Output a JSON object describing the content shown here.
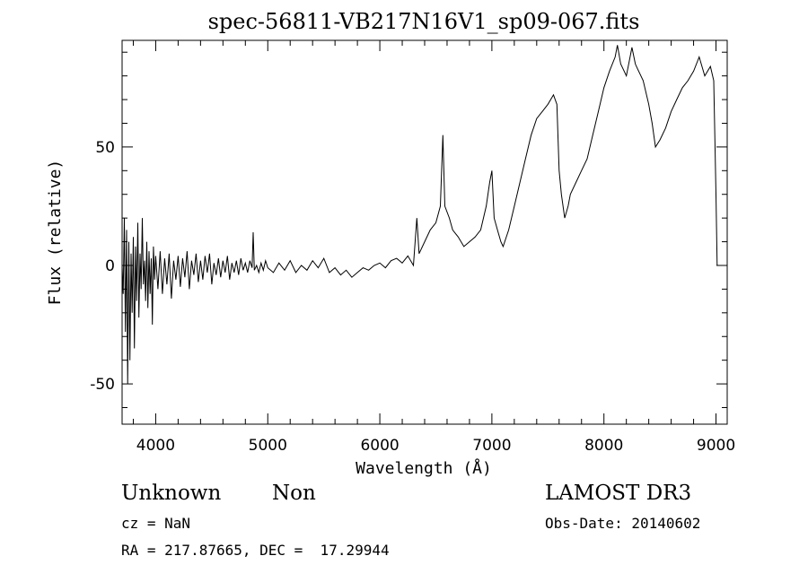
{
  "chart_data": {
    "type": "line",
    "title": "spec-56811-VB217N16V1_sp09-067.fits",
    "xlabel": "Wavelength (Å)",
    "ylabel": "Flux (relative)",
    "xlim": [
      3700,
      9100
    ],
    "ylim": [
      -67,
      95
    ],
    "xticks": [
      4000,
      5000,
      6000,
      7000,
      8000,
      9000
    ],
    "yticks": [
      -50,
      0,
      50
    ],
    "x_minor_step": 200,
    "y_minor_step": 10,
    "grid": false,
    "line_color": "#000000",
    "series": [
      {
        "values": [
          [
            3700,
            0
          ],
          [
            3710,
            -12
          ],
          [
            3720,
            20
          ],
          [
            3730,
            -28
          ],
          [
            3740,
            15
          ],
          [
            3750,
            -50
          ],
          [
            3760,
            10
          ],
          [
            3770,
            -40
          ],
          [
            3780,
            5
          ],
          [
            3790,
            -20
          ],
          [
            3800,
            12
          ],
          [
            3810,
            -35
          ],
          [
            3820,
            8
          ],
          [
            3830,
            -15
          ],
          [
            3840,
            18
          ],
          [
            3850,
            -22
          ],
          [
            3860,
            5
          ],
          [
            3870,
            -10
          ],
          [
            3880,
            20
          ],
          [
            3890,
            -8
          ],
          [
            3900,
            2
          ],
          [
            3910,
            -15
          ],
          [
            3920,
            10
          ],
          [
            3930,
            -18
          ],
          [
            3940,
            6
          ],
          [
            3950,
            -12
          ],
          [
            3960,
            3
          ],
          [
            3970,
            -25
          ],
          [
            3980,
            8
          ],
          [
            3990,
            -6
          ],
          [
            4000,
            4
          ],
          [
            4020,
            -10
          ],
          [
            4040,
            6
          ],
          [
            4060,
            -12
          ],
          [
            4080,
            3
          ],
          [
            4100,
            -8
          ],
          [
            4120,
            5
          ],
          [
            4140,
            -14
          ],
          [
            4160,
            2
          ],
          [
            4180,
            -6
          ],
          [
            4200,
            4
          ],
          [
            4220,
            -9
          ],
          [
            4240,
            3
          ],
          [
            4260,
            -5
          ],
          [
            4280,
            6
          ],
          [
            4300,
            -10
          ],
          [
            4320,
            2
          ],
          [
            4340,
            -4
          ],
          [
            4360,
            5
          ],
          [
            4380,
            -7
          ],
          [
            4400,
            2
          ],
          [
            4420,
            -6
          ],
          [
            4440,
            4
          ],
          [
            4460,
            -3
          ],
          [
            4480,
            5
          ],
          [
            4500,
            -8
          ],
          [
            4520,
            1
          ],
          [
            4540,
            -4
          ],
          [
            4560,
            3
          ],
          [
            4580,
            -5
          ],
          [
            4600,
            2
          ],
          [
            4620,
            -3
          ],
          [
            4640,
            4
          ],
          [
            4660,
            -6
          ],
          [
            4680,
            1
          ],
          [
            4700,
            -3
          ],
          [
            4720,
            2
          ],
          [
            4740,
            -4
          ],
          [
            4760,
            3
          ],
          [
            4780,
            -2
          ],
          [
            4800,
            1
          ],
          [
            4820,
            -3
          ],
          [
            4840,
            2
          ],
          [
            4860,
            -1
          ],
          [
            4870,
            14
          ],
          [
            4880,
            -2
          ],
          [
            4900,
            0
          ],
          [
            4920,
            -3
          ],
          [
            4940,
            1
          ],
          [
            4960,
            -2
          ],
          [
            4980,
            2
          ],
          [
            5000,
            -1
          ],
          [
            5050,
            -3
          ],
          [
            5100,
            1
          ],
          [
            5150,
            -2
          ],
          [
            5200,
            2
          ],
          [
            5250,
            -3
          ],
          [
            5300,
            0
          ],
          [
            5350,
            -2
          ],
          [
            5400,
            2
          ],
          [
            5450,
            -1
          ],
          [
            5500,
            3
          ],
          [
            5550,
            -3
          ],
          [
            5600,
            -1
          ],
          [
            5650,
            -4
          ],
          [
            5700,
            -2
          ],
          [
            5750,
            -5
          ],
          [
            5800,
            -3
          ],
          [
            5850,
            -1
          ],
          [
            5900,
            -2
          ],
          [
            5950,
            0
          ],
          [
            6000,
            1
          ],
          [
            6050,
            -1
          ],
          [
            6100,
            2
          ],
          [
            6150,
            3
          ],
          [
            6200,
            1
          ],
          [
            6250,
            4
          ],
          [
            6300,
            0
          ],
          [
            6330,
            20
          ],
          [
            6350,
            5
          ],
          [
            6400,
            10
          ],
          [
            6450,
            15
          ],
          [
            6500,
            18
          ],
          [
            6540,
            25
          ],
          [
            6563,
            55
          ],
          [
            6580,
            25
          ],
          [
            6620,
            20
          ],
          [
            6650,
            15
          ],
          [
            6700,
            12
          ],
          [
            6750,
            8
          ],
          [
            6800,
            10
          ],
          [
            6850,
            12
          ],
          [
            6900,
            15
          ],
          [
            6950,
            25
          ],
          [
            6980,
            35
          ],
          [
            7000,
            40
          ],
          [
            7020,
            20
          ],
          [
            7050,
            15
          ],
          [
            7080,
            10
          ],
          [
            7100,
            8
          ],
          [
            7150,
            15
          ],
          [
            7200,
            25
          ],
          [
            7250,
            35
          ],
          [
            7300,
            45
          ],
          [
            7350,
            55
          ],
          [
            7400,
            62
          ],
          [
            7450,
            65
          ],
          [
            7500,
            68
          ],
          [
            7550,
            72
          ],
          [
            7580,
            68
          ],
          [
            7600,
            40
          ],
          [
            7620,
            30
          ],
          [
            7650,
            20
          ],
          [
            7680,
            25
          ],
          [
            7700,
            30
          ],
          [
            7750,
            35
          ],
          [
            7800,
            40
          ],
          [
            7850,
            45
          ],
          [
            7900,
            55
          ],
          [
            7950,
            65
          ],
          [
            8000,
            75
          ],
          [
            8050,
            82
          ],
          [
            8100,
            88
          ],
          [
            8120,
            93
          ],
          [
            8150,
            85
          ],
          [
            8200,
            80
          ],
          [
            8250,
            92
          ],
          [
            8280,
            85
          ],
          [
            8300,
            83
          ],
          [
            8350,
            78
          ],
          [
            8400,
            68
          ],
          [
            8430,
            60
          ],
          [
            8460,
            50
          ],
          [
            8500,
            53
          ],
          [
            8550,
            58
          ],
          [
            8600,
            65
          ],
          [
            8650,
            70
          ],
          [
            8700,
            75
          ],
          [
            8750,
            78
          ],
          [
            8800,
            82
          ],
          [
            8850,
            88
          ],
          [
            8900,
            80
          ],
          [
            8950,
            84
          ],
          [
            8980,
            78
          ],
          [
            9000,
            30
          ],
          [
            9010,
            0
          ]
        ]
      }
    ]
  },
  "footer": {
    "object_class": "Unknown",
    "subclass": "Non",
    "survey": "LAMOST DR3",
    "cz": "cz = NaN",
    "obs_date": "Obs-Date: 20140602",
    "coords": "RA = 217.87665, DEC =  17.29944"
  }
}
